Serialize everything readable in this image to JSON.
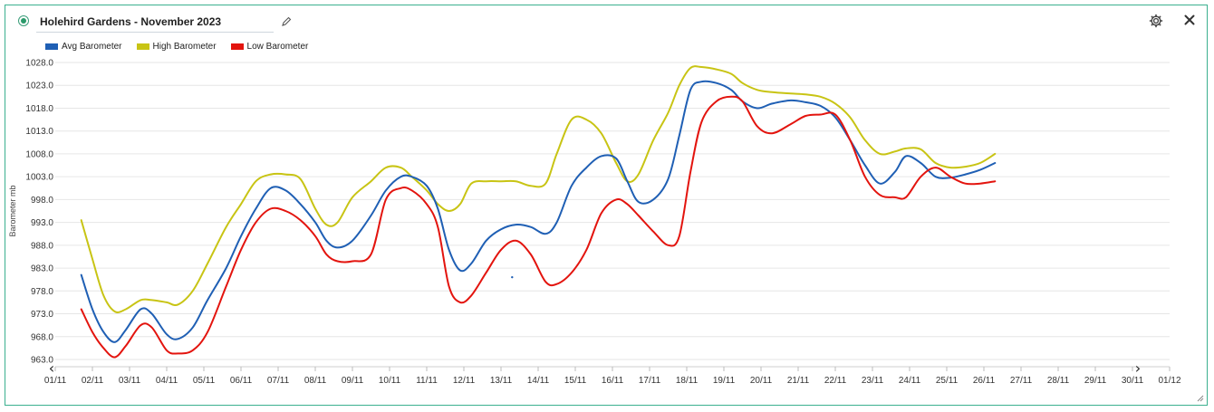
{
  "header": {
    "title": "Holehird Gardens - November 2023",
    "status_icon": "status-dot-icon",
    "edit_icon": "pencil-icon",
    "settings_icon": "gear-icon",
    "close_icon": "close-icon"
  },
  "colors": {
    "border": "#3bb08f",
    "grid": "#e6e6e6",
    "avg": "#1f5fb4",
    "high": "#c8c414",
    "low": "#e3140e"
  },
  "chart_data": {
    "type": "line",
    "ylabel": "Barometer mb",
    "xlabel": "",
    "ylim": [
      963.0,
      1028.0
    ],
    "grid": "horizontal",
    "legend_position": "top-left",
    "y_ticks": [
      "1028.0",
      "1023.0",
      "1018.0",
      "1013.0",
      "1008.0",
      "1003.0",
      "998.0",
      "993.0",
      "988.0",
      "983.0",
      "978.0",
      "973.0",
      "968.0",
      "963.0"
    ],
    "x_ticks": [
      "01/11",
      "02/11",
      "03/11",
      "04/11",
      "05/11",
      "06/11",
      "07/11",
      "08/11",
      "09/11",
      "10/11",
      "11/11",
      "12/11",
      "13/11",
      "14/11",
      "15/11",
      "16/11",
      "17/11",
      "18/11",
      "19/11",
      "20/11",
      "21/11",
      "22/11",
      "23/11",
      "24/11",
      "25/11",
      "26/11",
      "27/11",
      "28/11",
      "29/11",
      "30/11",
      "01/12"
    ],
    "nav_prev": "‹",
    "nav_next": "›",
    "x_start": "2023-11-01",
    "series": [
      {
        "name": "Avg Barometer",
        "color": "#1f5fb4",
        "points": [
          [
            0.7,
            981.5
          ],
          [
            1.0,
            974
          ],
          [
            1.3,
            969
          ],
          [
            1.6,
            966.8
          ],
          [
            1.9,
            969.5
          ],
          [
            2.3,
            974
          ],
          [
            2.6,
            973
          ],
          [
            3.0,
            968.5
          ],
          [
            3.3,
            967.5
          ],
          [
            3.7,
            970
          ],
          [
            4.1,
            976
          ],
          [
            4.6,
            983
          ],
          [
            5.0,
            990
          ],
          [
            5.4,
            996
          ],
          [
            5.8,
            1000.5
          ],
          [
            6.2,
            1000
          ],
          [
            6.6,
            997
          ],
          [
            7.0,
            993
          ],
          [
            7.3,
            989
          ],
          [
            7.6,
            987.5
          ],
          [
            8.0,
            989
          ],
          [
            8.5,
            994.5
          ],
          [
            8.9,
            1000
          ],
          [
            9.3,
            1003
          ],
          [
            9.6,
            1003
          ],
          [
            10.0,
            1001
          ],
          [
            10.3,
            996
          ],
          [
            10.6,
            987
          ],
          [
            10.9,
            982.5
          ],
          [
            11.2,
            984
          ],
          [
            11.6,
            989
          ],
          [
            12.0,
            991.5
          ],
          [
            12.4,
            992.5
          ],
          [
            12.8,
            992
          ],
          [
            13.2,
            990.5
          ],
          [
            13.5,
            993
          ],
          [
            13.9,
            1001
          ],
          [
            14.3,
            1005
          ],
          [
            14.7,
            1007.5
          ],
          [
            15.1,
            1007
          ],
          [
            15.4,
            1002
          ],
          [
            15.7,
            997.5
          ],
          [
            16.1,
            998
          ],
          [
            16.5,
            1002.5
          ],
          [
            16.8,
            1012
          ],
          [
            17.1,
            1022
          ],
          [
            17.4,
            1023.8
          ],
          [
            17.8,
            1023.5
          ],
          [
            18.2,
            1022
          ],
          [
            18.5,
            1019.5
          ],
          [
            18.9,
            1018
          ],
          [
            19.3,
            1019
          ],
          [
            19.8,
            1019.7
          ],
          [
            20.2,
            1019.3
          ],
          [
            20.6,
            1018.5
          ],
          [
            21.0,
            1016
          ],
          [
            21.4,
            1011
          ],
          [
            21.8,
            1005.5
          ],
          [
            22.2,
            1001.5
          ],
          [
            22.6,
            1004
          ],
          [
            22.9,
            1007.5
          ],
          [
            23.3,
            1006
          ],
          [
            23.7,
            1003
          ],
          [
            24.1,
            1002.8
          ],
          [
            24.5,
            1003.5
          ],
          [
            24.9,
            1004.5
          ],
          [
            25.3,
            1006
          ]
        ]
      },
      {
        "name": "High Barometer",
        "color": "#c8c414",
        "points": [
          [
            0.7,
            993.5
          ],
          [
            1.0,
            985
          ],
          [
            1.3,
            977
          ],
          [
            1.6,
            973.5
          ],
          [
            1.9,
            974
          ],
          [
            2.3,
            976
          ],
          [
            2.6,
            976
          ],
          [
            3.0,
            975.5
          ],
          [
            3.3,
            975
          ],
          [
            3.7,
            978
          ],
          [
            4.1,
            984
          ],
          [
            4.6,
            992
          ],
          [
            5.0,
            997
          ],
          [
            5.4,
            1002
          ],
          [
            5.8,
            1003.5
          ],
          [
            6.2,
            1003.5
          ],
          [
            6.6,
            1002.5
          ],
          [
            7.0,
            996
          ],
          [
            7.3,
            992.5
          ],
          [
            7.6,
            993
          ],
          [
            8.0,
            998.5
          ],
          [
            8.5,
            1002
          ],
          [
            8.9,
            1005
          ],
          [
            9.3,
            1005
          ],
          [
            9.6,
            1003
          ],
          [
            10.0,
            1000
          ],
          [
            10.3,
            997
          ],
          [
            10.6,
            995.5
          ],
          [
            10.9,
            997
          ],
          [
            11.2,
            1001.5
          ],
          [
            11.6,
            1002
          ],
          [
            12.0,
            1002
          ],
          [
            12.4,
            1002
          ],
          [
            12.8,
            1001
          ],
          [
            13.2,
            1001.5
          ],
          [
            13.5,
            1008
          ],
          [
            13.9,
            1015.5
          ],
          [
            14.3,
            1015.5
          ],
          [
            14.7,
            1012.5
          ],
          [
            15.1,
            1006
          ],
          [
            15.4,
            1002
          ],
          [
            15.7,
            1003.5
          ],
          [
            16.1,
            1011
          ],
          [
            16.5,
            1017
          ],
          [
            16.8,
            1023
          ],
          [
            17.1,
            1026.8
          ],
          [
            17.4,
            1027
          ],
          [
            17.8,
            1026.5
          ],
          [
            18.2,
            1025.5
          ],
          [
            18.5,
            1023.5
          ],
          [
            18.9,
            1022
          ],
          [
            19.3,
            1021.5
          ],
          [
            19.8,
            1021.2
          ],
          [
            20.2,
            1021
          ],
          [
            20.6,
            1020.5
          ],
          [
            21.0,
            1019
          ],
          [
            21.4,
            1016
          ],
          [
            21.8,
            1011
          ],
          [
            22.2,
            1008
          ],
          [
            22.6,
            1008.5
          ],
          [
            22.9,
            1009.2
          ],
          [
            23.3,
            1009
          ],
          [
            23.7,
            1006
          ],
          [
            24.1,
            1005
          ],
          [
            24.5,
            1005.2
          ],
          [
            24.9,
            1006
          ],
          [
            25.3,
            1008
          ]
        ]
      },
      {
        "name": "Low Barometer",
        "color": "#e3140e",
        "points": [
          [
            0.7,
            974
          ],
          [
            1.0,
            969
          ],
          [
            1.3,
            965.5
          ],
          [
            1.6,
            963.5
          ],
          [
            1.9,
            966
          ],
          [
            2.3,
            970.5
          ],
          [
            2.6,
            970
          ],
          [
            3.0,
            965
          ],
          [
            3.3,
            964.3
          ],
          [
            3.7,
            965
          ],
          [
            4.1,
            969
          ],
          [
            4.6,
            979
          ],
          [
            5.0,
            987
          ],
          [
            5.4,
            993
          ],
          [
            5.8,
            996
          ],
          [
            6.2,
            995.5
          ],
          [
            6.6,
            993.5
          ],
          [
            7.0,
            990
          ],
          [
            7.3,
            986
          ],
          [
            7.6,
            984.5
          ],
          [
            8.0,
            984.5
          ],
          [
            8.5,
            986
          ],
          [
            8.9,
            998
          ],
          [
            9.3,
            1000.5
          ],
          [
            9.6,
            1000
          ],
          [
            10.0,
            997
          ],
          [
            10.3,
            992
          ],
          [
            10.6,
            979
          ],
          [
            10.9,
            975.5
          ],
          [
            11.2,
            977
          ],
          [
            11.6,
            982
          ],
          [
            12.0,
            987
          ],
          [
            12.4,
            989
          ],
          [
            12.8,
            986
          ],
          [
            13.2,
            980
          ],
          [
            13.5,
            979.5
          ],
          [
            13.9,
            982
          ],
          [
            14.3,
            987
          ],
          [
            14.7,
            995
          ],
          [
            15.1,
            998
          ],
          [
            15.4,
            997
          ],
          [
            15.7,
            994.5
          ],
          [
            16.1,
            991
          ],
          [
            16.5,
            988
          ],
          [
            16.8,
            990
          ],
          [
            17.1,
            1004
          ],
          [
            17.4,
            1015
          ],
          [
            17.8,
            1019.5
          ],
          [
            18.2,
            1020.5
          ],
          [
            18.5,
            1019.5
          ],
          [
            18.9,
            1014
          ],
          [
            19.3,
            1012.5
          ],
          [
            19.8,
            1014.5
          ],
          [
            20.2,
            1016.3
          ],
          [
            20.6,
            1016.6
          ],
          [
            21.0,
            1016.6
          ],
          [
            21.4,
            1011
          ],
          [
            21.8,
            1003
          ],
          [
            22.2,
            999
          ],
          [
            22.6,
            998.5
          ],
          [
            22.9,
            998.5
          ],
          [
            23.3,
            1003
          ],
          [
            23.7,
            1005
          ],
          [
            24.1,
            1003
          ],
          [
            24.5,
            1001.5
          ],
          [
            24.9,
            1001.5
          ],
          [
            25.3,
            1002
          ]
        ]
      }
    ],
    "annotations": [
      {
        "type": "stray-point",
        "series": "Avg Barometer",
        "x": 12.3,
        "y": 981.0
      }
    ]
  }
}
